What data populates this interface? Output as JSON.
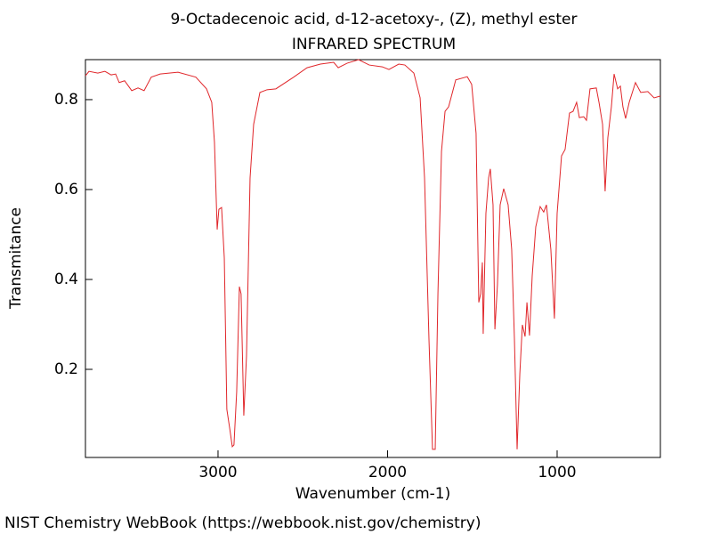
{
  "chart_data": {
    "type": "line",
    "title": "9-Octadecenoic acid, d-12-acetoxy-, (Z), methyl ester",
    "subtitle": "INFRARED SPECTRUM",
    "x_label": "Wavenumber (cm-1)",
    "y_label": "Transmitance",
    "xlim": [
      3782,
      391
    ],
    "ylim": [
      0.004,
      0.889
    ],
    "xticks": [
      3000,
      2000,
      1000
    ],
    "yticks": [
      0.2,
      0.4,
      0.6,
      0.8
    ],
    "x": [
      3782,
      3761,
      3709,
      3667,
      3630,
      3604,
      3583,
      3551,
      3509,
      3472,
      3436,
      3394,
      3341,
      3236,
      3131,
      3068,
      3037,
      3021,
      3005,
      2995,
      2979,
      2963,
      2948,
      2932,
      2916,
      2906,
      2890,
      2874,
      2864,
      2848,
      2832,
      2811,
      2790,
      2753,
      2711,
      2659,
      2554,
      2475,
      2396,
      2318,
      2291,
      2239,
      2171,
      2108,
      2031,
      1992,
      1934,
      1898,
      1845,
      1808,
      1782,
      1756,
      1735,
      1719,
      1703,
      1682,
      1661,
      1640,
      1598,
      1530,
      1504,
      1478,
      1462,
      1451,
      1441,
      1436,
      1420,
      1404,
      1394,
      1378,
      1367,
      1352,
      1336,
      1315,
      1289,
      1268,
      1252,
      1236,
      1220,
      1205,
      1189,
      1178,
      1163,
      1147,
      1126,
      1100,
      1079,
      1063,
      1037,
      1016,
      1000,
      974,
      953,
      927,
      906,
      885,
      869,
      843,
      827,
      806,
      769,
      753,
      732,
      717,
      701,
      680,
      664,
      643,
      627,
      612,
      596,
      575,
      538,
      507,
      465,
      428,
      391
    ],
    "series": [
      {
        "color": "#e0262a",
        "values": [
          0.853,
          0.863,
          0.859,
          0.863,
          0.855,
          0.857,
          0.838,
          0.842,
          0.82,
          0.826,
          0.82,
          0.85,
          0.857,
          0.861,
          0.85,
          0.824,
          0.794,
          0.705,
          0.511,
          0.556,
          0.56,
          0.448,
          0.111,
          0.071,
          0.028,
          0.032,
          0.15,
          0.384,
          0.368,
          0.097,
          0.23,
          0.626,
          0.745,
          0.816,
          0.822,
          0.824,
          0.85,
          0.871,
          0.879,
          0.883,
          0.871,
          0.881,
          0.889,
          0.877,
          0.873,
          0.867,
          0.879,
          0.877,
          0.859,
          0.804,
          0.626,
          0.269,
          0.022,
          0.022,
          0.368,
          0.685,
          0.774,
          0.784,
          0.844,
          0.851,
          0.834,
          0.725,
          0.349,
          0.368,
          0.438,
          0.279,
          0.547,
          0.626,
          0.646,
          0.566,
          0.289,
          0.388,
          0.566,
          0.602,
          0.566,
          0.467,
          0.269,
          0.022,
          0.19,
          0.299,
          0.273,
          0.349,
          0.275,
          0.408,
          0.517,
          0.562,
          0.55,
          0.566,
          0.467,
          0.313,
          0.547,
          0.675,
          0.689,
          0.77,
          0.774,
          0.794,
          0.76,
          0.762,
          0.754,
          0.824,
          0.826,
          0.794,
          0.745,
          0.596,
          0.715,
          0.784,
          0.857,
          0.824,
          0.83,
          0.784,
          0.758,
          0.794,
          0.838,
          0.816,
          0.818,
          0.804,
          0.808
        ]
      }
    ]
  },
  "footer": "NIST Chemistry WebBook (https://webbook.nist.gov/chemistry)"
}
